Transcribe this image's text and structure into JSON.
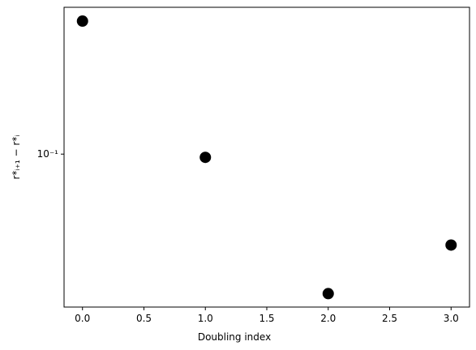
{
  "chart_data": {
    "type": "scatter",
    "xlabel": "Doubling index",
    "ylabel": "r*ᵢ₊₁ − r*ᵢ",
    "x": [
      0,
      1,
      2,
      3
    ],
    "values": [
      0.453,
      0.0964,
      0.0205,
      0.0356
    ],
    "color": "#000000",
    "xlim": [
      -0.15,
      3.15
    ],
    "xticks": [
      {
        "value": 0,
        "label": "0.0"
      },
      0.5,
      {
        "value": 1,
        "label": "1.0"
      },
      1.5,
      {
        "value": 2,
        "label": "2.0"
      },
      2.5,
      {
        "value": 3,
        "label": "3.0"
      }
    ],
    "ylim": [
      0.0176,
      0.53
    ],
    "yticks": [
      {
        "value": 0.1,
        "label": "10⁻¹"
      }
    ],
    "yscale": "log",
    "grid": false
  }
}
